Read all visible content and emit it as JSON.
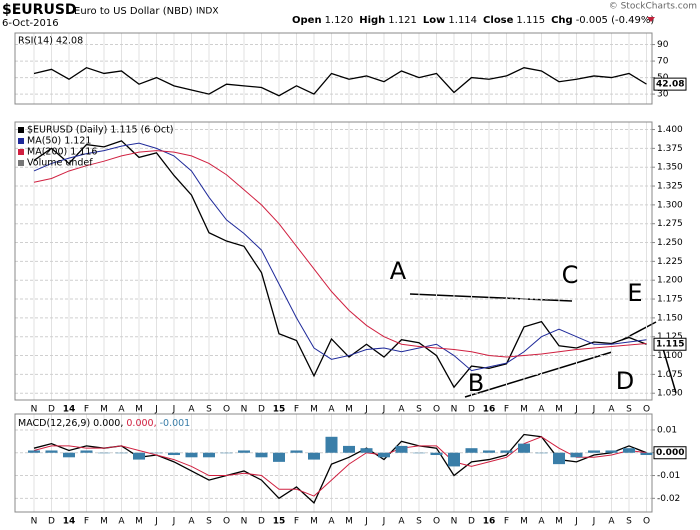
{
  "header": {
    "symbol": "$EURUSD",
    "name": "Euro to US Dollar (NBD)",
    "exchange": "INDX",
    "date": "6-Oct-2016",
    "credit": "© StockCharts.com",
    "quote": [
      {
        "label": "Open",
        "value": "1.120"
      },
      {
        "label": "High",
        "value": "1.121"
      },
      {
        "label": "Low",
        "value": "1.114"
      },
      {
        "label": "Close",
        "value": "1.115"
      },
      {
        "label": "Chg",
        "value": "-0.005 (-0.49%)"
      }
    ]
  },
  "chart_data": [
    {
      "type": "line",
      "series": [
        {
          "name": "RSI(14) 42.08",
          "color": "#000000",
          "values": [
            55,
            60,
            48,
            62,
            55,
            58,
            42,
            50,
            40,
            35,
            30,
            42,
            40,
            38,
            28,
            40,
            30,
            55,
            48,
            52,
            45,
            58,
            50,
            55,
            32,
            50,
            48,
            52,
            62,
            58,
            45,
            48,
            52,
            50,
            55,
            42.08
          ]
        }
      ],
      "ylim": [
        18,
        104
      ],
      "yticks": [
        30,
        50,
        70,
        90
      ],
      "grid": true,
      "last_label": "42.08"
    },
    {
      "type": "line",
      "categories": [
        "N",
        "D",
        "14",
        "F",
        "M",
        "A",
        "M",
        "J",
        "J",
        "A",
        "S",
        "O",
        "N",
        "D",
        "15",
        "F",
        "M",
        "A",
        "M",
        "J",
        "J",
        "A",
        "S",
        "O",
        "N",
        "D",
        "16",
        "F",
        "M",
        "A",
        "M",
        "J",
        "J",
        "A",
        "S",
        "O"
      ],
      "series": [
        {
          "name": "$EURUSD (Daily) 1.115 (6 Oct)",
          "color": "#000000",
          "values": [
            1.359,
            1.375,
            1.355,
            1.38,
            1.377,
            1.385,
            1.363,
            1.369,
            1.339,
            1.313,
            1.263,
            1.252,
            1.245,
            1.21,
            1.129,
            1.12,
            1.073,
            1.122,
            1.098,
            1.115,
            1.098,
            1.121,
            1.117,
            1.1,
            1.058,
            1.086,
            1.083,
            1.089,
            1.138,
            1.145,
            1.113,
            1.11,
            1.118,
            1.116,
            1.124,
            1.115
          ]
        },
        {
          "name": "MA(50) 1.121",
          "color": "#1f2a9a",
          "values": [
            1.345,
            1.355,
            1.362,
            1.368,
            1.372,
            1.378,
            1.382,
            1.375,
            1.365,
            1.345,
            1.31,
            1.28,
            1.262,
            1.24,
            1.195,
            1.15,
            1.11,
            1.095,
            1.1,
            1.108,
            1.11,
            1.105,
            1.11,
            1.115,
            1.1,
            1.08,
            1.085,
            1.09,
            1.105,
            1.125,
            1.135,
            1.125,
            1.115,
            1.115,
            1.118,
            1.121
          ]
        },
        {
          "name": "MA(200) 1.116",
          "color": "#d02040",
          "values": [
            1.33,
            1.335,
            1.345,
            1.352,
            1.358,
            1.365,
            1.37,
            1.372,
            1.37,
            1.365,
            1.355,
            1.34,
            1.32,
            1.3,
            1.275,
            1.245,
            1.215,
            1.185,
            1.16,
            1.14,
            1.125,
            1.115,
            1.112,
            1.11,
            1.108,
            1.105,
            1.1,
            1.098,
            1.1,
            1.102,
            1.105,
            1.108,
            1.11,
            1.112,
            1.114,
            1.116
          ]
        }
      ],
      "legend_notes": [
        "Volume undef"
      ],
      "ylim": [
        1.041,
        1.41
      ],
      "yticks": [
        {
          "value": 1.05,
          "label": "1.050"
        },
        {
          "value": 1.075,
          "label": "1.075"
        },
        {
          "value": 1.1,
          "label": "1.100"
        },
        {
          "value": 1.125,
          "label": "1.125"
        },
        {
          "value": 1.15,
          "label": "1.150"
        },
        {
          "value": 1.175,
          "label": "1.175"
        },
        {
          "value": 1.2,
          "label": "1.200"
        },
        {
          "value": 1.225,
          "label": "1.225"
        },
        {
          "value": 1.25,
          "label": "1.250"
        },
        {
          "value": 1.275,
          "label": "1.275"
        },
        {
          "value": 1.3,
          "label": "1.300"
        },
        {
          "value": 1.325,
          "label": "1.325"
        },
        {
          "value": 1.35,
          "label": "1.350"
        },
        {
          "value": 1.375,
          "label": "1.375"
        },
        {
          "value": 1.4,
          "label": "1.400"
        }
      ],
      "grid": true,
      "annotations": [
        "A",
        "B",
        "C",
        "D",
        "E"
      ],
      "last_label": "1.115"
    },
    {
      "type": "line",
      "title": "MACD(12,26,9)",
      "categories": [
        "N",
        "D",
        "14",
        "F",
        "M",
        "A",
        "M",
        "J",
        "J",
        "A",
        "S",
        "O",
        "N",
        "D",
        "15",
        "F",
        "M",
        "A",
        "M",
        "J",
        "J",
        "A",
        "S",
        "O",
        "N",
        "D",
        "16",
        "F",
        "M",
        "A",
        "M",
        "J",
        "J",
        "A",
        "S",
        "O"
      ],
      "series": [
        {
          "name": "0.000,",
          "color": "#000000",
          "values": [
            0.002,
            0.004,
            0.001,
            0.003,
            0.002,
            0.003,
            -0.002,
            -0.001,
            -0.004,
            -0.008,
            -0.012,
            -0.01,
            -0.008,
            -0.012,
            -0.02,
            -0.015,
            -0.022,
            -0.005,
            -0.002,
            0.002,
            -0.003,
            0.005,
            0.003,
            0.002,
            -0.01,
            -0.004,
            -0.003,
            -0.001,
            0.008,
            0.007,
            -0.003,
            -0.004,
            -0.001,
            0.0,
            0.003,
            0.0
          ]
        },
        {
          "name": "0.000,",
          "color": "#d02040",
          "values": [
            0.001,
            0.003,
            0.003,
            0.002,
            0.002,
            0.003,
            0.001,
            -0.001,
            -0.003,
            -0.006,
            -0.01,
            -0.01,
            -0.009,
            -0.01,
            -0.016,
            -0.016,
            -0.019,
            -0.012,
            -0.005,
            0.0,
            -0.001,
            0.002,
            0.003,
            0.003,
            -0.004,
            -0.006,
            -0.004,
            -0.002,
            0.004,
            0.007,
            0.002,
            -0.002,
            -0.002,
            -0.001,
            0.001,
            0.0
          ]
        },
        {
          "name": "-0.001",
          "type": "bar",
          "color": "#3a7ea8",
          "values": [
            0.001,
            0.001,
            -0.002,
            0.001,
            0,
            0,
            -0.003,
            0,
            -0.001,
            -0.002,
            -0.002,
            0,
            0.001,
            -0.002,
            -0.004,
            0.001,
            -0.003,
            0.007,
            0.003,
            0.002,
            -0.002,
            0.003,
            0,
            -0.001,
            -0.006,
            0.002,
            0.001,
            0.001,
            0.004,
            0,
            -0.005,
            -0.002,
            0.001,
            0.001,
            0.002,
            -0.001
          ]
        }
      ],
      "ylim": [
        -0.026,
        0.017
      ],
      "yticks": [
        0.01,
        {
          "value": 0,
          "label": "0.000"
        },
        -0.01,
        -0.02
      ],
      "grid": true,
      "last_label": "0.000"
    }
  ]
}
